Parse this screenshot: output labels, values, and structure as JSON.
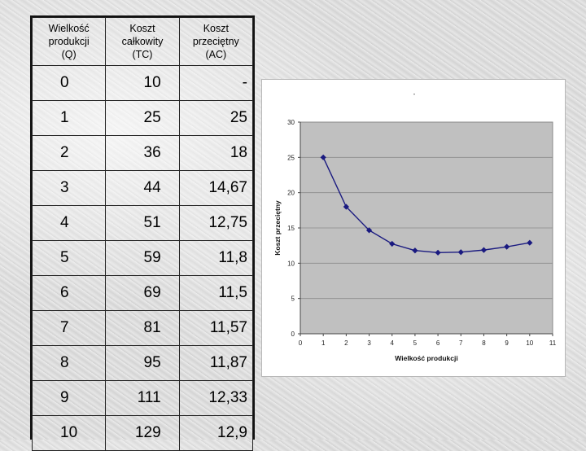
{
  "table": {
    "headers": [
      [
        "Wielkość",
        "produkcji",
        "(Q)"
      ],
      [
        "Koszt",
        "całkowity",
        "(TC)"
      ],
      [
        "Koszt",
        "przeciętny",
        "(AC)"
      ]
    ],
    "rows": [
      [
        "0",
        "10",
        "-"
      ],
      [
        "1",
        "25",
        "25"
      ],
      [
        "2",
        "36",
        "18"
      ],
      [
        "3",
        "44",
        "14,67"
      ],
      [
        "4",
        "51",
        "12,75"
      ],
      [
        "5",
        "59",
        "11,8"
      ],
      [
        "6",
        "69",
        "11,5"
      ],
      [
        "7",
        "81",
        "11,57"
      ],
      [
        "8",
        "95",
        "11,87"
      ],
      [
        "9",
        "111",
        "12,33"
      ],
      [
        "10",
        "129",
        "12,9"
      ]
    ]
  },
  "chart_data": {
    "type": "line",
    "title": "-",
    "xlabel": "Wielkość produkcji",
    "ylabel": "Koszt przeciętny",
    "xlim": [
      0,
      11
    ],
    "ylim": [
      0,
      30
    ],
    "xticks": [
      0,
      1,
      2,
      3,
      4,
      5,
      6,
      7,
      8,
      9,
      10,
      11
    ],
    "yticks": [
      0,
      5,
      10,
      15,
      20,
      25,
      30
    ],
    "grid": true,
    "legend": "none",
    "series": [
      {
        "x": [
          1,
          2,
          3,
          4,
          5,
          6,
          7,
          8,
          9,
          10
        ],
        "y": [
          25,
          18,
          14.67,
          12.75,
          11.8,
          11.5,
          11.57,
          11.87,
          12.33,
          12.9
        ]
      }
    ],
    "colors": {
      "line": "#1a1a80",
      "plot_bg": "#c0c0c0",
      "grid": "#8a8a8a"
    }
  }
}
